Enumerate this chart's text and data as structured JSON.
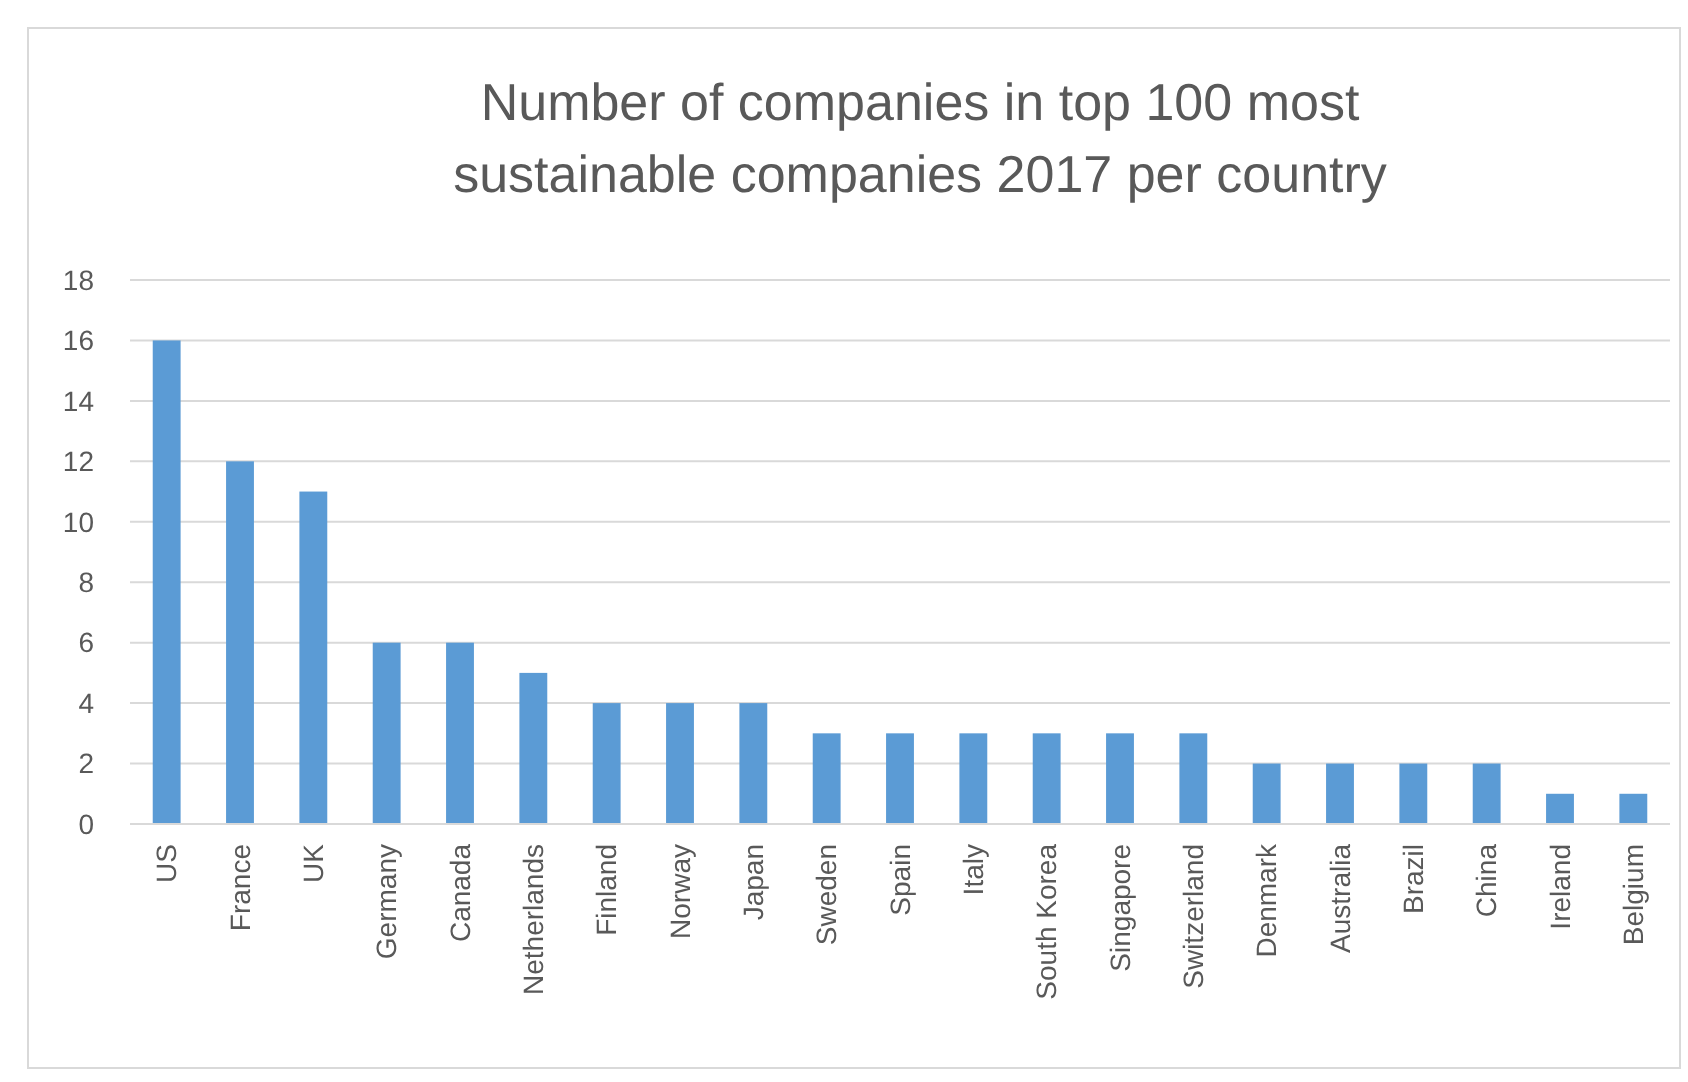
{
  "chart_data": {
    "type": "bar",
    "title": "Number of companies in top 100 most sustainable companies 2017 per country",
    "categories": [
      "US",
      "France",
      "UK",
      "Germany",
      "Canada",
      "Netherlands",
      "Finland",
      "Norway",
      "Japan",
      "Sweden",
      "Spain",
      "Italy",
      "South Korea",
      "Singapore",
      "Switzerland",
      "Denmark",
      "Australia",
      "Brazil",
      "China",
      "Ireland",
      "Belgium"
    ],
    "values": [
      16,
      12,
      11,
      6,
      6,
      5,
      4,
      4,
      4,
      3,
      3,
      3,
      3,
      3,
      3,
      2,
      2,
      2,
      2,
      1,
      1
    ],
    "color": "#5b9bd5",
    "ylim": [
      0,
      18
    ],
    "yticks": [
      0,
      2,
      4,
      6,
      8,
      10,
      12,
      14,
      16,
      18
    ],
    "grid": "y"
  }
}
